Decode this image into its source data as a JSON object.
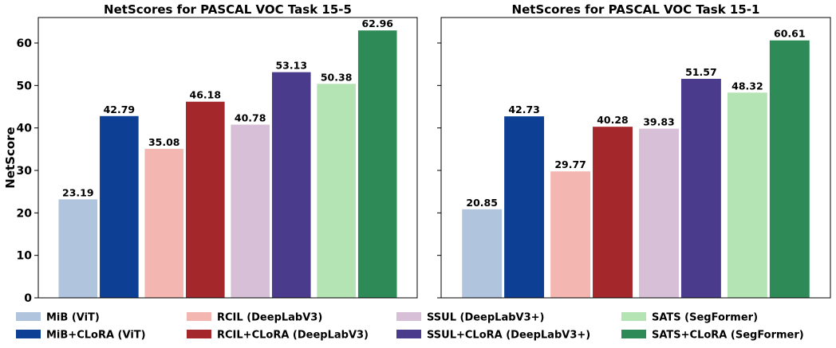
{
  "chart_data": {
    "type": "bar",
    "ylabel": "NetScore",
    "ylim": [
      0,
      66
    ],
    "yticks": [
      "0",
      "10",
      "20",
      "30",
      "40",
      "50",
      "60"
    ],
    "legend_position": "bottom",
    "series": [
      {
        "name": "MiB (ViT)",
        "color": "#b0c4de"
      },
      {
        "name": "MiB+CLoRA (ViT)",
        "color": "#0d3f95"
      },
      {
        "name": "RCIL (DeepLabV3)",
        "color": "#f4b6b0"
      },
      {
        "name": "RCIL+CLoRA (DeepLabV3)",
        "color": "#a4282b"
      },
      {
        "name": "SSUL (DeepLabV3+)",
        "color": "#d8bfd8"
      },
      {
        "name": "SSUL+CLoRA (DeepLabV3+)",
        "color": "#4a3b8c"
      },
      {
        "name": "SATS (SegFormer)",
        "color": "#b4e4b4"
      },
      {
        "name": "SATS+CLoRA (SegFormer)",
        "color": "#2e8b57"
      }
    ],
    "panels": [
      {
        "title": "NetScores for PASCAL VOC Task 15-5",
        "values": [
          23.19,
          42.79,
          35.08,
          46.18,
          40.78,
          53.13,
          50.38,
          62.96
        ],
        "labels": [
          "23.19",
          "42.79",
          "35.08",
          "46.18",
          "40.78",
          "53.13",
          "50.38",
          "62.96"
        ]
      },
      {
        "title": "NetScores for PASCAL VOC Task 15-1",
        "values": [
          20.85,
          42.73,
          29.77,
          40.28,
          39.83,
          51.57,
          48.32,
          60.61
        ],
        "labels": [
          "20.85",
          "42.73",
          "29.77",
          "40.28",
          "39.83",
          "51.57",
          "48.32",
          "60.61"
        ]
      }
    ]
  }
}
